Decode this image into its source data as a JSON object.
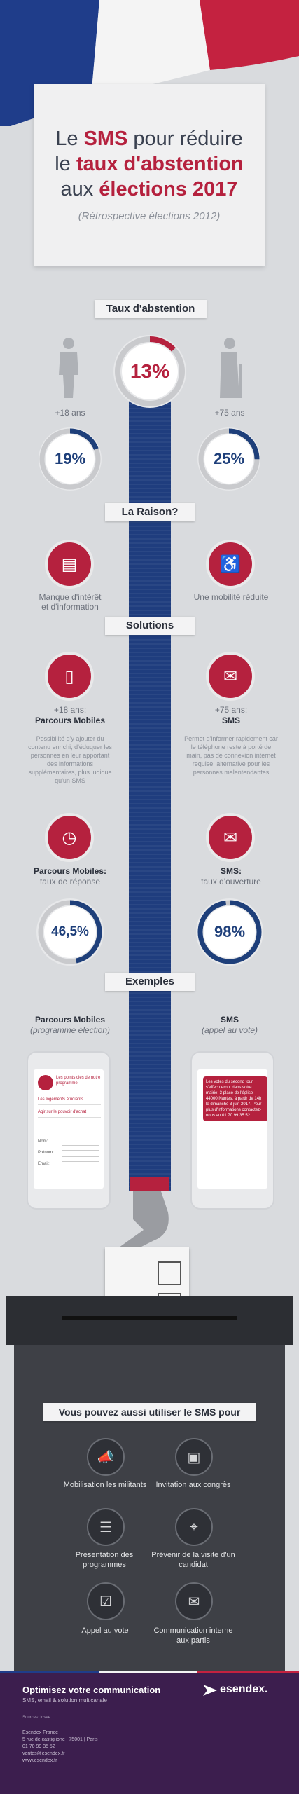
{
  "header": {
    "title_line1_pre": "Le",
    "title_line1_hl": "SMS",
    "title_line1_post": "pour réduire",
    "title_line2_pre": "le",
    "title_line2_hl": "taux d'abstention",
    "title_line3_pre": "aux",
    "title_line3_hl": "élections 2017",
    "subtitle": "(Rétrospective élections 2012)"
  },
  "abstention": {
    "ribbon": "Taux d'abstention",
    "overall": "13%",
    "young_label": "+18 ans",
    "young_value": "19%",
    "old_label": "+75 ans",
    "old_value": "25%"
  },
  "reason": {
    "ribbon": "La Raison?",
    "left_label_1": "Manque d'intérêt",
    "left_label_2": "et d'information",
    "right_label": "Une mobilité réduite"
  },
  "solutions": {
    "ribbon": "Solutions",
    "left_title_1": "+18 ans:",
    "left_title_2": "Parcours Mobiles",
    "left_text": "Possibilité d'y ajouter du contenu enrichi, d'éduquer les personnes en leur apportant des informations supplémentaires, plus ludique qu'un SMS",
    "right_title_1": "+75 ans:",
    "right_title_2": "SMS",
    "right_text": "Permet d'informer rapidement car le téléphone reste à porté de main, pas de connexion internet requise, alternative pour les personnes malentendantes",
    "left_metric_1": "Parcours Mobiles:",
    "left_metric_2": "taux de réponse",
    "left_metric_value": "46,5%",
    "right_metric_1": "SMS:",
    "right_metric_2": "taux d'ouverture",
    "right_metric_value": "98%"
  },
  "examples": {
    "ribbon": "Exemples",
    "left_title": "Parcours Mobiles",
    "left_subtitle": "(programme élection)",
    "right_title": "SMS",
    "right_subtitle": "(appel au vote)",
    "left_phone": {
      "item1": "Les points clés de notre programme",
      "item2": "Les logements étudiants",
      "item3": "Agir sur le pouvoir d'achat",
      "field_nom": "Nom:",
      "field_prenom": "Prénom:",
      "field_email": "Email:"
    },
    "right_phone_message": "Les votes du second tour s'effectueront dans votre mairie: 3 place de l'église 44000 Nantes, à partir de 14h le dimanche 3 juin 2017. Pour plus d'informations contactez-nous au 01 70 99 35 52"
  },
  "uses": {
    "ribbon": "Vous pouvez aussi utiliser le SMS pour",
    "items": [
      "Mobilisation les militants",
      "Invitation aux congrès",
      "Présentation des programmes",
      "Prévenir de la visite d'un candidat",
      "Appel au vote",
      "Communication interne aux partis"
    ]
  },
  "footer": {
    "headline": "Optimisez votre communication",
    "tagline": "SMS, email & solution multicanale",
    "sources": "Sources: Insee",
    "company": "Esendex France",
    "address": "5 rue de castiglione | 75001 | Paris",
    "phone": "01 70 99 35 52",
    "email": "ventes@esendex.fr",
    "website": "www.esendex.fr",
    "brand": "esendex."
  },
  "colors": {
    "red": "#b5213e",
    "blue": "#1e3f7a",
    "footer_bg": "#3c1e4e"
  }
}
